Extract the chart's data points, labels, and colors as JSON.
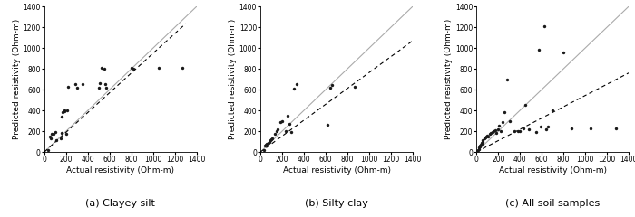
{
  "panels": [
    {
      "title": "(a) Clayey silt",
      "scatter_x": [
        30,
        50,
        60,
        70,
        80,
        100,
        110,
        150,
        160,
        160,
        170,
        180,
        180,
        200,
        210,
        220,
        280,
        300,
        350,
        500,
        510,
        530,
        550,
        560,
        570,
        800,
        820,
        1050,
        1270
      ],
      "scatter_y": [
        20,
        150,
        130,
        170,
        170,
        190,
        110,
        130,
        180,
        340,
        380,
        400,
        390,
        170,
        400,
        630,
        650,
        620,
        650,
        620,
        660,
        810,
        800,
        650,
        620,
        810,
        800,
        810,
        810
      ],
      "fit_line_x": [
        0,
        1300
      ],
      "fit_line_y": [
        0,
        1235
      ],
      "xlabel": "Actual resistivity (Ohm-m)",
      "ylabel": "Predicted resistivity (Ohm-m)"
    },
    {
      "title": "(b) Silty clay",
      "scatter_x": [
        30,
        40,
        50,
        60,
        70,
        80,
        90,
        100,
        110,
        130,
        150,
        160,
        180,
        200,
        230,
        250,
        270,
        280,
        310,
        330,
        620,
        640,
        660,
        870
      ],
      "scatter_y": [
        20,
        60,
        70,
        80,
        90,
        100,
        110,
        120,
        130,
        170,
        200,
        220,
        290,
        300,
        200,
        350,
        270,
        190,
        610,
        650,
        265,
        620,
        640,
        630
      ],
      "fit_line_x": [
        0,
        1400
      ],
      "fit_line_y": [
        0,
        1070
      ],
      "xlabel": "Actual resistivity (Ohm-m)",
      "ylabel": "Predicted resistivity (Ohm-m)"
    },
    {
      "title": "(c) All soil samples",
      "scatter_x": [
        10,
        15,
        20,
        25,
        30,
        35,
        40,
        45,
        50,
        55,
        60,
        70,
        80,
        90,
        100,
        110,
        120,
        130,
        150,
        160,
        170,
        180,
        200,
        210,
        220,
        240,
        260,
        280,
        310,
        350,
        380,
        400,
        430,
        450,
        480,
        550,
        570,
        590,
        620,
        640,
        660,
        700,
        800,
        870,
        1050,
        1280
      ],
      "scatter_y": [
        10,
        20,
        30,
        40,
        50,
        60,
        70,
        80,
        90,
        100,
        110,
        130,
        140,
        150,
        160,
        150,
        170,
        180,
        190,
        200,
        210,
        180,
        220,
        250,
        200,
        290,
        380,
        700,
        300,
        200,
        200,
        200,
        230,
        450,
        220,
        190,
        980,
        240,
        1210,
        220,
        240,
        400,
        960,
        230,
        230,
        230
      ],
      "fit_line_x": [
        0,
        1400
      ],
      "fit_line_y": [
        0,
        760
      ],
      "xlabel": "Actual resistivity (Ohm-m)",
      "ylabel": "Predicted resistivity (Ohm-m)"
    }
  ],
  "xlim": [
    0,
    1400
  ],
  "ylim": [
    0,
    1400
  ],
  "xticks": [
    0,
    200,
    400,
    600,
    800,
    1000,
    1200,
    1400
  ],
  "yticks": [
    0,
    200,
    400,
    600,
    800,
    1000,
    1200,
    1400
  ],
  "background_color": "#ffffff",
  "scatter_color": "#1a1a1a",
  "ref_line_color": "#aaaaaa",
  "fit_line_color": "#000000",
  "scatter_size": 6,
  "title_fontsize": 8,
  "label_fontsize": 6.5,
  "tick_fontsize": 5.5
}
